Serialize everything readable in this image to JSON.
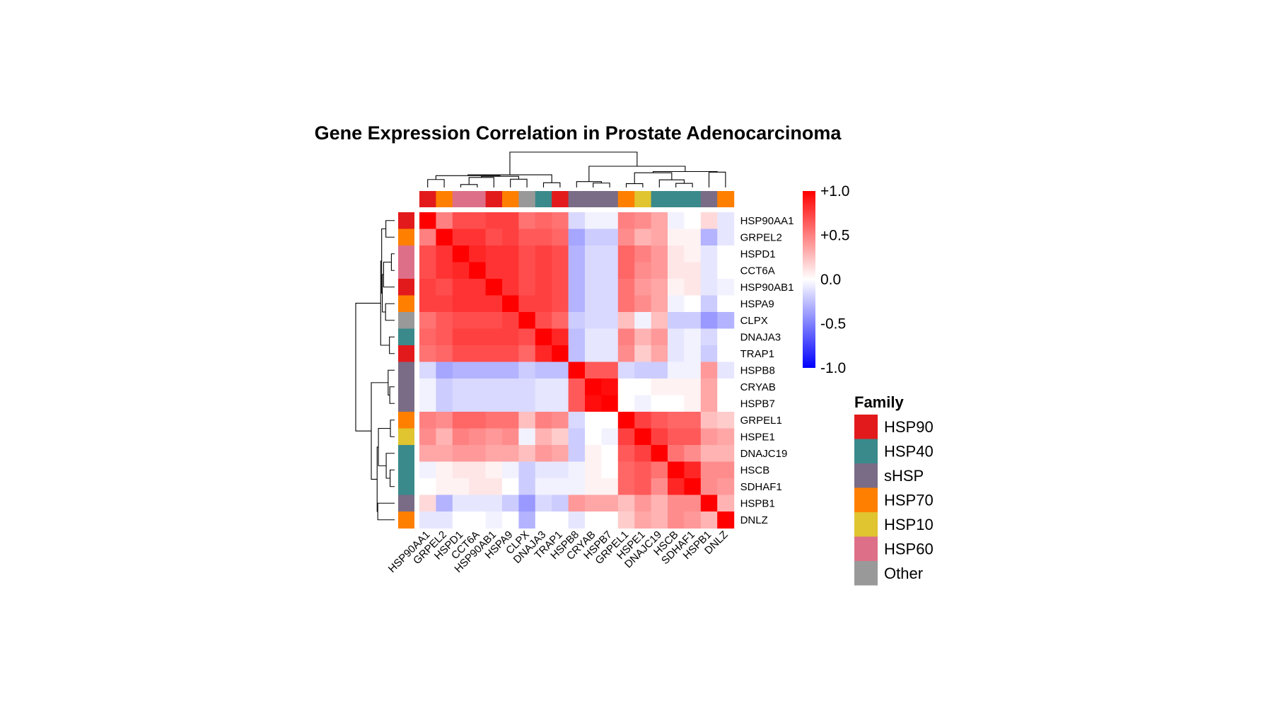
{
  "chart_data": {
    "type": "heatmap",
    "title": "Gene Expression Correlation in Prostate Adenocarcinoma",
    "genes": [
      "HSP90AA1",
      "GRPEL2",
      "HSPD1",
      "CCT6A",
      "HSP90AB1",
      "HSPA9",
      "CLPX",
      "DNAJA3",
      "TRAP1",
      "HSPB8",
      "CRYAB",
      "HSPB7",
      "GRPEL1",
      "HSPE1",
      "DNAJC19",
      "HSCB",
      "SDHAF1",
      "HSPB1",
      "DNLZ"
    ],
    "gene_family": [
      "HSP90",
      "HSP70",
      "HSP60",
      "HSP60",
      "HSP90",
      "HSP70",
      "Other",
      "HSP40",
      "HSP90",
      "sHSP",
      "sHSP",
      "sHSP",
      "HSP70",
      "HSP10",
      "HSP40",
      "HSP40",
      "HSP40",
      "sHSP",
      "HSP70"
    ],
    "matrix": [
      [
        1.0,
        0.5,
        0.7,
        0.7,
        0.75,
        0.75,
        0.55,
        0.6,
        0.55,
        -0.15,
        -0.05,
        -0.05,
        0.5,
        0.45,
        0.35,
        -0.05,
        0.0,
        0.15,
        -0.1
      ],
      [
        0.5,
        1.0,
        0.8,
        0.8,
        0.7,
        0.75,
        0.65,
        0.65,
        0.6,
        -0.35,
        -0.2,
        -0.2,
        0.45,
        0.3,
        0.35,
        0.05,
        0.05,
        -0.3,
        -0.1
      ],
      [
        0.7,
        0.8,
        1.0,
        0.85,
        0.8,
        0.8,
        0.7,
        0.75,
        0.7,
        -0.3,
        -0.15,
        -0.15,
        0.6,
        0.5,
        0.4,
        0.1,
        0.05,
        -0.1,
        0.0
      ],
      [
        0.7,
        0.8,
        0.85,
        1.0,
        0.8,
        0.8,
        0.7,
        0.75,
        0.7,
        -0.3,
        -0.15,
        -0.15,
        0.6,
        0.45,
        0.4,
        0.1,
        0.1,
        -0.1,
        0.0
      ],
      [
        0.75,
        0.7,
        0.8,
        0.8,
        1.0,
        0.8,
        0.7,
        0.75,
        0.7,
        -0.3,
        -0.15,
        -0.15,
        0.55,
        0.4,
        0.35,
        0.05,
        0.1,
        -0.1,
        -0.05
      ],
      [
        0.75,
        0.75,
        0.8,
        0.8,
        0.8,
        1.0,
        0.75,
        0.75,
        0.7,
        -0.3,
        -0.15,
        -0.15,
        0.55,
        0.45,
        0.35,
        -0.05,
        0.0,
        -0.2,
        0.0
      ],
      [
        0.55,
        0.65,
        0.7,
        0.7,
        0.7,
        0.75,
        1.0,
        0.7,
        0.6,
        -0.2,
        -0.15,
        -0.15,
        0.25,
        -0.05,
        0.25,
        -0.2,
        -0.2,
        -0.4,
        -0.3
      ],
      [
        0.6,
        0.65,
        0.75,
        0.75,
        0.75,
        0.75,
        0.7,
        1.0,
        0.85,
        -0.25,
        -0.1,
        -0.1,
        0.5,
        0.3,
        0.4,
        -0.1,
        -0.05,
        -0.15,
        0.0
      ],
      [
        0.55,
        0.6,
        0.7,
        0.7,
        0.7,
        0.7,
        0.6,
        0.85,
        1.0,
        -0.25,
        -0.1,
        -0.1,
        0.45,
        0.2,
        0.35,
        -0.1,
        -0.05,
        -0.2,
        0.0
      ],
      [
        -0.15,
        -0.35,
        -0.3,
        -0.3,
        -0.3,
        -0.3,
        -0.2,
        -0.25,
        -0.25,
        1.0,
        0.65,
        0.65,
        -0.15,
        -0.2,
        -0.2,
        -0.05,
        -0.05,
        0.4,
        -0.1
      ],
      [
        -0.05,
        -0.2,
        -0.15,
        -0.15,
        -0.15,
        -0.15,
        -0.15,
        -0.1,
        -0.1,
        0.65,
        1.0,
        0.95,
        0.0,
        0.0,
        0.05,
        0.05,
        0.05,
        0.35,
        0.0
      ],
      [
        -0.05,
        -0.2,
        -0.15,
        -0.15,
        -0.15,
        -0.15,
        -0.15,
        -0.1,
        -0.1,
        0.65,
        0.95,
        1.0,
        0.0,
        -0.05,
        0.0,
        0.0,
        0.05,
        0.35,
        0.0
      ],
      [
        0.5,
        0.45,
        0.6,
        0.6,
        0.55,
        0.55,
        0.25,
        0.5,
        0.45,
        -0.15,
        0.0,
        0.0,
        1.0,
        0.75,
        0.65,
        0.6,
        0.6,
        0.25,
        0.2
      ],
      [
        0.45,
        0.3,
        0.5,
        0.45,
        0.4,
        0.45,
        -0.05,
        0.3,
        0.2,
        -0.2,
        0.0,
        -0.05,
        0.75,
        1.0,
        0.75,
        0.65,
        0.65,
        0.4,
        0.35
      ],
      [
        0.35,
        0.35,
        0.4,
        0.4,
        0.35,
        0.35,
        0.25,
        0.4,
        0.35,
        -0.2,
        0.05,
        0.0,
        0.65,
        0.75,
        1.0,
        0.55,
        0.45,
        0.3,
        0.3
      ],
      [
        -0.05,
        0.05,
        0.1,
        0.1,
        0.05,
        -0.05,
        -0.2,
        -0.1,
        -0.1,
        -0.05,
        0.05,
        0.0,
        0.6,
        0.65,
        0.55,
        1.0,
        0.85,
        0.45,
        0.45
      ],
      [
        0.0,
        0.05,
        0.05,
        0.1,
        0.1,
        0.0,
        -0.2,
        -0.05,
        -0.05,
        -0.05,
        0.05,
        0.05,
        0.6,
        0.65,
        0.45,
        0.85,
        1.0,
        0.45,
        0.4
      ],
      [
        0.15,
        -0.3,
        -0.1,
        -0.1,
        -0.1,
        -0.2,
        -0.4,
        -0.15,
        -0.2,
        0.4,
        0.35,
        0.35,
        0.25,
        0.4,
        0.3,
        0.45,
        0.45,
        1.0,
        0.3
      ],
      [
        -0.1,
        -0.1,
        0.0,
        0.0,
        -0.05,
        0.0,
        -0.3,
        0.0,
        0.0,
        -0.1,
        0.0,
        0.0,
        0.2,
        0.35,
        0.3,
        0.45,
        0.4,
        0.3,
        1.0
      ]
    ],
    "colorbar": {
      "range": [
        -1.0,
        1.0
      ],
      "ticks": [
        "+1.0",
        "+0.5",
        "0.0",
        "-0.5",
        "-1.0"
      ],
      "colors": [
        "#0000ff",
        "#ffffff",
        "#ff0000"
      ]
    },
    "legend": {
      "title": "Family",
      "entries": [
        {
          "label": "HSP90",
          "color": "#e31a1c"
        },
        {
          "label": "HSP40",
          "color": "#3a8a8c"
        },
        {
          "label": "sHSP",
          "color": "#7a6c86"
        },
        {
          "label": "HSP70",
          "color": "#ff7f00"
        },
        {
          "label": "HSP10",
          "color": "#e0c430"
        },
        {
          "label": "HSP60",
          "color": "#dd7088"
        },
        {
          "label": "Other",
          "color": "#999999"
        }
      ]
    },
    "dendrogram": {
      "merges": [
        [
          2,
          3
        ],
        [
          12,
          13
        ],
        [
          15,
          16
        ],
        [
          10,
          11
        ],
        [
          7,
          8
        ],
        [
          9,
          "m3"
        ],
        [
          14,
          "m2"
        ],
        [
          0,
          1
        ],
        [
          5,
          6
        ],
        [
          "m0",
          4
        ],
        [
          "m9",
          "m8"
        ],
        [
          "m7",
          "m10"
        ],
        [
          "m4",
          "m11"
        ],
        [
          "m1",
          "m6"
        ],
        [
          17,
          18
        ],
        [
          "m13",
          "m14"
        ],
        [
          "m5",
          "m15"
        ],
        [
          "m12",
          "m16"
        ]
      ],
      "heights": [
        5.0,
        6.5,
        7.0,
        7.5,
        8.0,
        10.0,
        13.0,
        13.5,
        14.0,
        17.0,
        19.0,
        20.0,
        21.5,
        25.0,
        26.0,
        27.0,
        36.0,
        60.0
      ]
    }
  }
}
